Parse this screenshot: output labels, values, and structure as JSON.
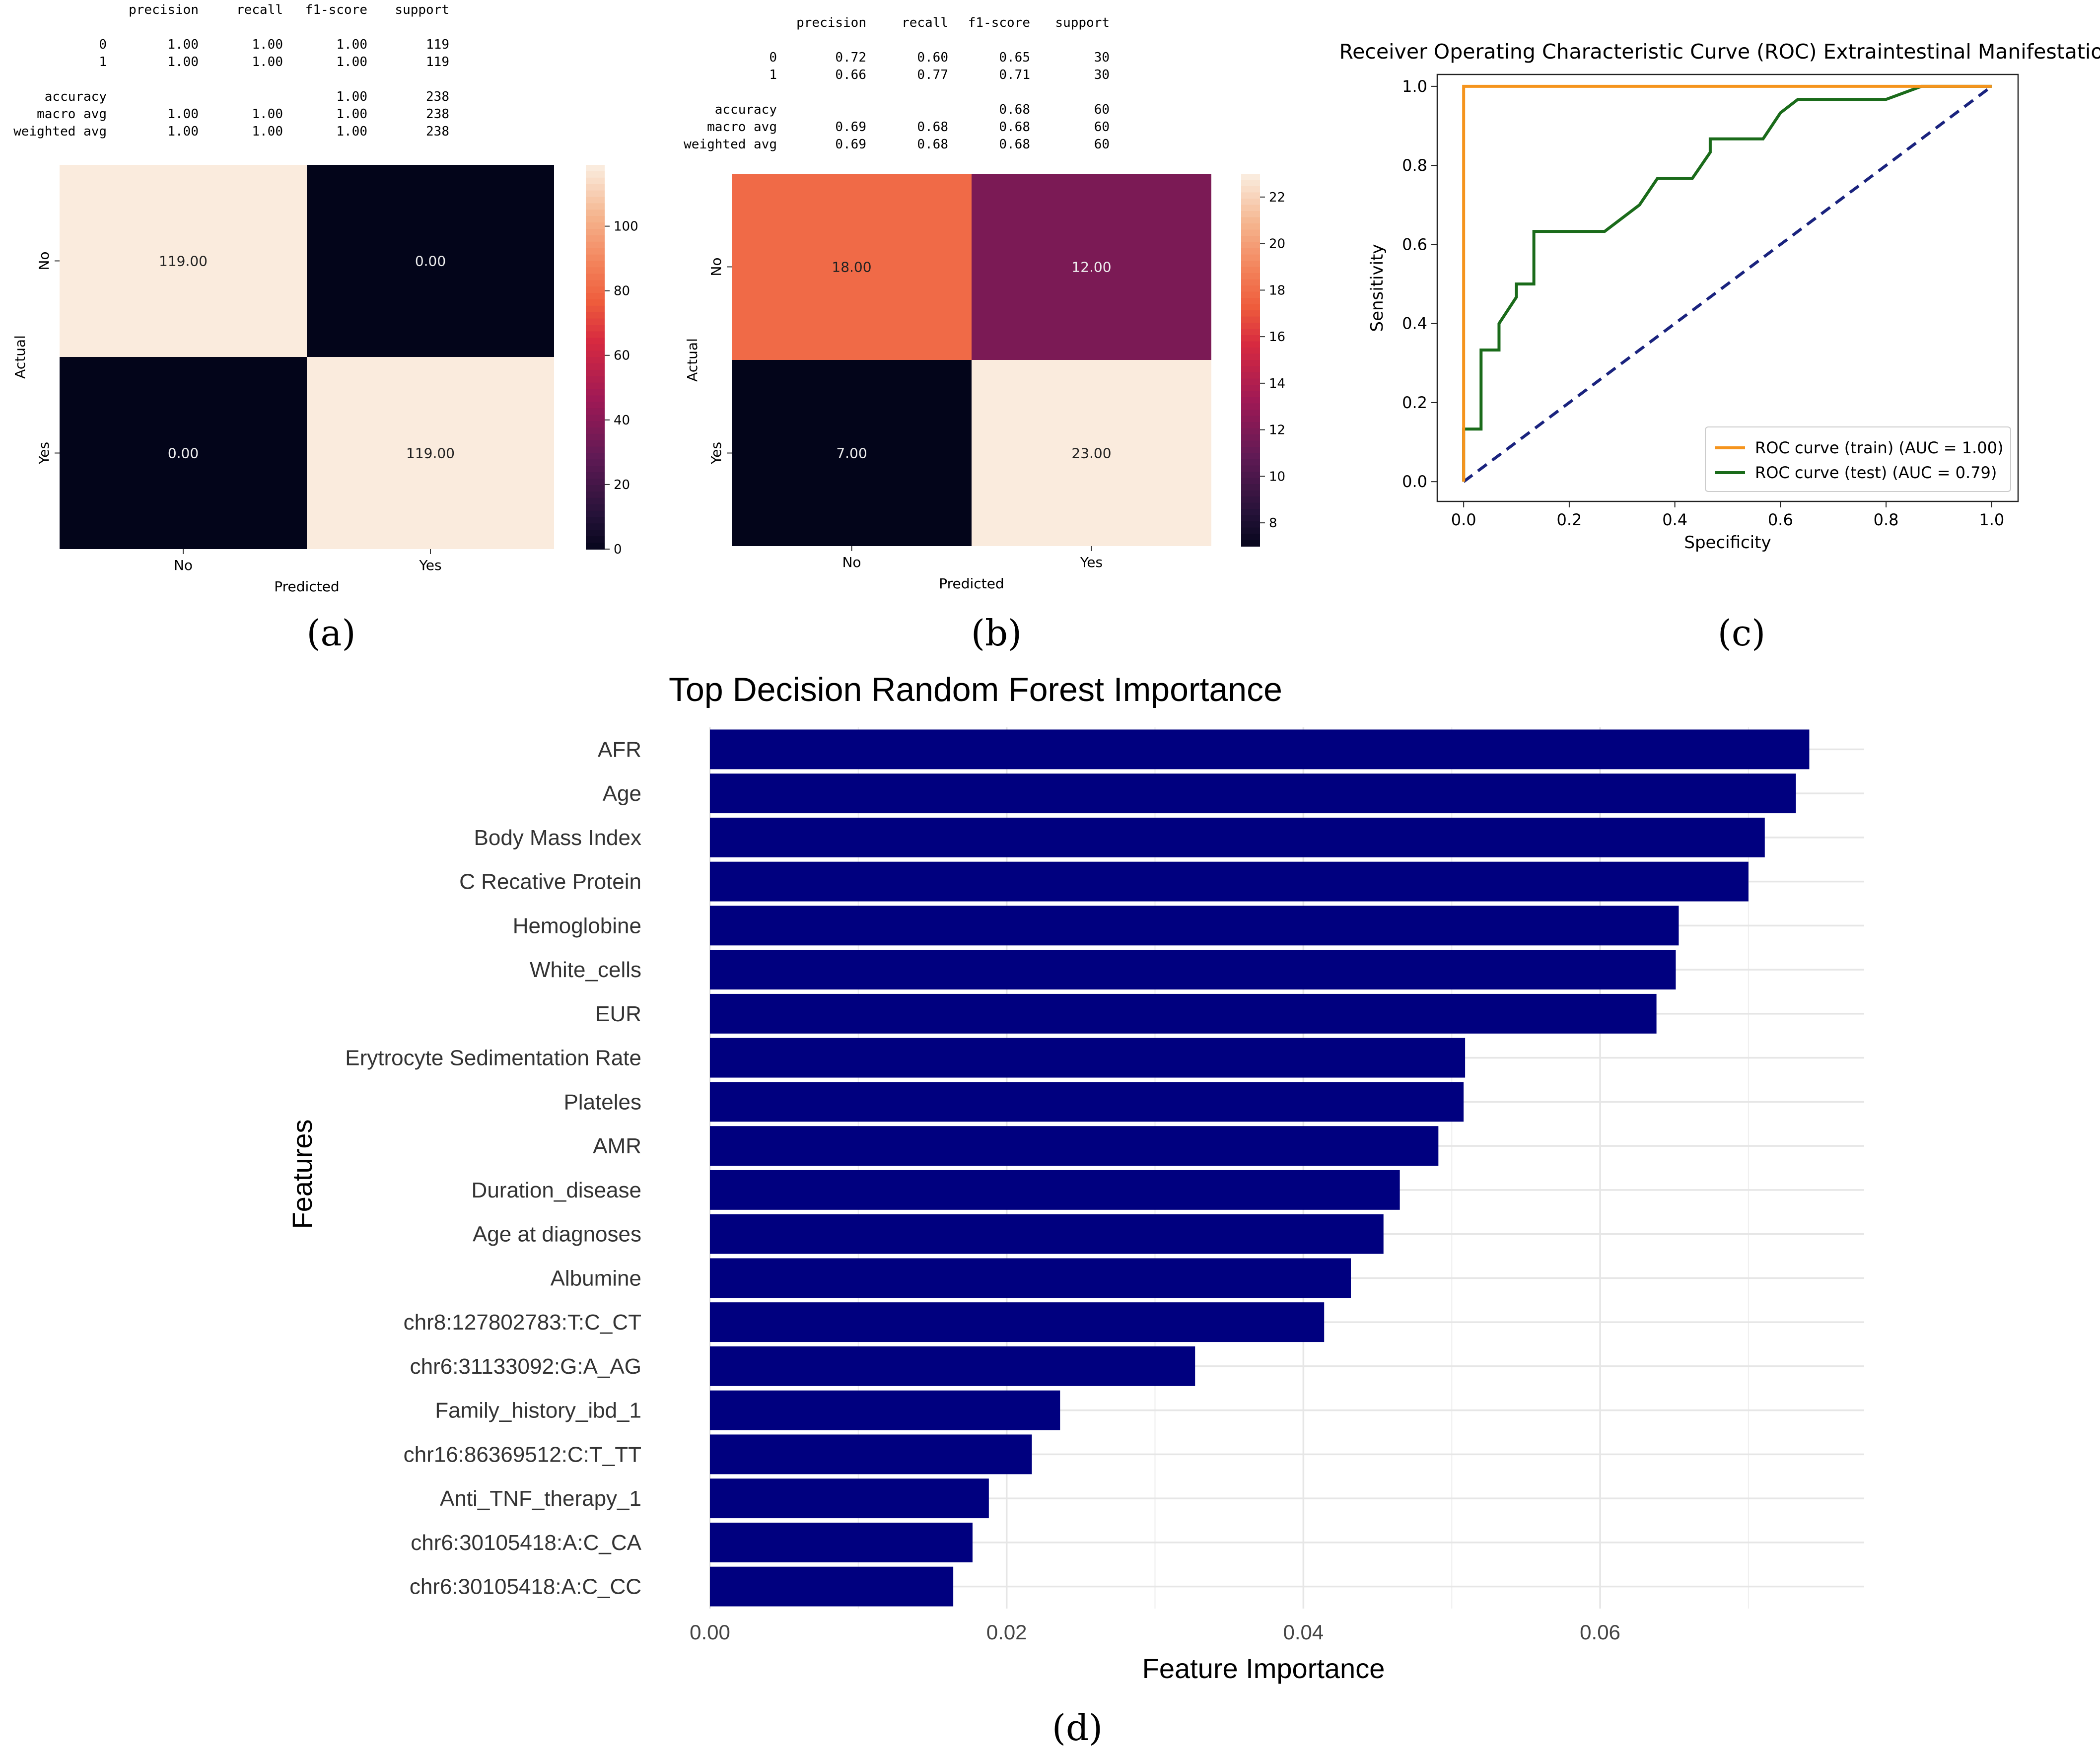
{
  "panels": {
    "a": {
      "label": "(a)"
    },
    "b": {
      "label": "(b)"
    },
    "c": {
      "label": "(c)"
    },
    "d": {
      "label": "(d)"
    }
  },
  "chart_data": [
    {
      "id": "a",
      "type": "heatmap",
      "report": {
        "header": [
          "precision",
          "recall",
          "f1-score",
          "support"
        ],
        "rows": [
          {
            "label": "0",
            "cells": [
              "1.00",
              "1.00",
              "1.00",
              "119"
            ]
          },
          {
            "label": "1",
            "cells": [
              "1.00",
              "1.00",
              "1.00",
              "119"
            ]
          },
          {
            "label": "accuracy",
            "cells": [
              "",
              "",
              "1.00",
              "238"
            ]
          },
          {
            "label": "macro avg",
            "cells": [
              "1.00",
              "1.00",
              "1.00",
              "238"
            ]
          },
          {
            "label": "weighted avg",
            "cells": [
              "1.00",
              "1.00",
              "1.00",
              "238"
            ]
          }
        ]
      },
      "matrix": [
        [
          119,
          0
        ],
        [
          0,
          119
        ]
      ],
      "cell_labels": [
        [
          "119.00",
          "0.00"
        ],
        [
          "0.00",
          "119.00"
        ]
      ],
      "row_labels": [
        "No",
        "Yes"
      ],
      "col_labels": [
        "No",
        "Yes"
      ],
      "xlabel": "Predicted",
      "ylabel": "Actual",
      "colorbar": {
        "min": 0,
        "max": 119,
        "ticks": [
          0,
          20,
          40,
          60,
          80,
          100
        ]
      }
    },
    {
      "id": "b",
      "type": "heatmap",
      "report": {
        "header": [
          "precision",
          "recall",
          "f1-score",
          "support"
        ],
        "rows": [
          {
            "label": "0",
            "cells": [
              "0.72",
              "0.60",
              "0.65",
              "30"
            ]
          },
          {
            "label": "1",
            "cells": [
              "0.66",
              "0.77",
              "0.71",
              "30"
            ]
          },
          {
            "label": "accuracy",
            "cells": [
              "",
              "",
              "0.68",
              "60"
            ]
          },
          {
            "label": "macro avg",
            "cells": [
              "0.69",
              "0.68",
              "0.68",
              "60"
            ]
          },
          {
            "label": "weighted avg",
            "cells": [
              "0.69",
              "0.68",
              "0.68",
              "60"
            ]
          }
        ]
      },
      "matrix": [
        [
          18,
          12
        ],
        [
          7,
          23
        ]
      ],
      "cell_labels": [
        [
          "18.00",
          "12.00"
        ],
        [
          "7.00",
          "23.00"
        ]
      ],
      "row_labels": [
        "No",
        "Yes"
      ],
      "col_labels": [
        "No",
        "Yes"
      ],
      "xlabel": "Predicted",
      "ylabel": "Actual",
      "colorbar": {
        "min": 7,
        "max": 23,
        "ticks": [
          8,
          10,
          12,
          14,
          16,
          18,
          20,
          22
        ]
      }
    },
    {
      "id": "c",
      "type": "line",
      "title": "Receiver Operating Characteristic Curve (ROC) Extraintestinal Manifestation",
      "xlabel": "Specificity",
      "ylabel": "Sensitivity",
      "xlim": [
        -0.05,
        1.05
      ],
      "ylim": [
        -0.05,
        1.03
      ],
      "xticks": [
        "0.0",
        "0.2",
        "0.4",
        "0.6",
        "0.8",
        "1.0"
      ],
      "yticks": [
        "0.0",
        "0.2",
        "0.4",
        "0.6",
        "0.8",
        "1.0"
      ],
      "series": [
        {
          "name": "ROC curve (train) (AUC = 1.00)",
          "color": "#f5941d",
          "x": [
            0,
            0,
            1
          ],
          "y": [
            0,
            1,
            1
          ]
        },
        {
          "name": "ROC curve (test) (AUC = 0.79)",
          "color": "#1a6b1a",
          "x": [
            0,
            0,
            0.033,
            0.033,
            0.067,
            0.067,
            0.1,
            0.1,
            0.133,
            0.133,
            0.267,
            0.333,
            0.367,
            0.433,
            0.467,
            0.467,
            0.567,
            0.6,
            0.633,
            0.8,
            0.867,
            1
          ],
          "y": [
            0,
            0.133,
            0.133,
            0.333,
            0.333,
            0.4,
            0.467,
            0.5,
            0.5,
            0.633,
            0.633,
            0.7,
            0.767,
            0.767,
            0.833,
            0.867,
            0.867,
            0.933,
            0.967,
            0.967,
            1,
            1
          ]
        },
        {
          "name": "chance",
          "color": "#1a237e",
          "dashed": true,
          "x": [
            0,
            1
          ],
          "y": [
            0,
            1
          ]
        }
      ],
      "legend": "lower-right"
    },
    {
      "id": "d",
      "type": "bar",
      "orientation": "horizontal",
      "title": "Top Decision Random Forest Importance",
      "xlabel": "Feature Importance",
      "ylabel": "Features",
      "xlim": [
        0,
        0.0778
      ],
      "xticks": [
        "0.00",
        "0.02",
        "0.04",
        "0.06"
      ],
      "color": "#00007f",
      "categories": [
        "AFR",
        "Age",
        "Body Mass Index",
        "C Recative Protein",
        "Hemoglobine",
        "White_cells",
        "EUR",
        "Erytrocyte Sedimentation Rate",
        "Plateles",
        "AMR",
        "Duration_disease",
        "Age at diagnoses",
        "Albumine",
        "chr8:127802783:T:C_CT",
        "chr6:31133092:G:A_AG",
        "Family_history_ibd_1",
        "chr16:86369512:C:T_TT",
        "Anti_TNF_therapy_1",
        "chr6:30105418:A:C_CA",
        "chr6:30105418:A:C_CC"
      ],
      "values": [
        0.0741,
        0.0732,
        0.0711,
        0.07,
        0.0653,
        0.0651,
        0.0638,
        0.0509,
        0.0508,
        0.0491,
        0.0465,
        0.0454,
        0.0432,
        0.0414,
        0.0327,
        0.0236,
        0.0217,
        0.0188,
        0.0177,
        0.0164
      ]
    }
  ]
}
